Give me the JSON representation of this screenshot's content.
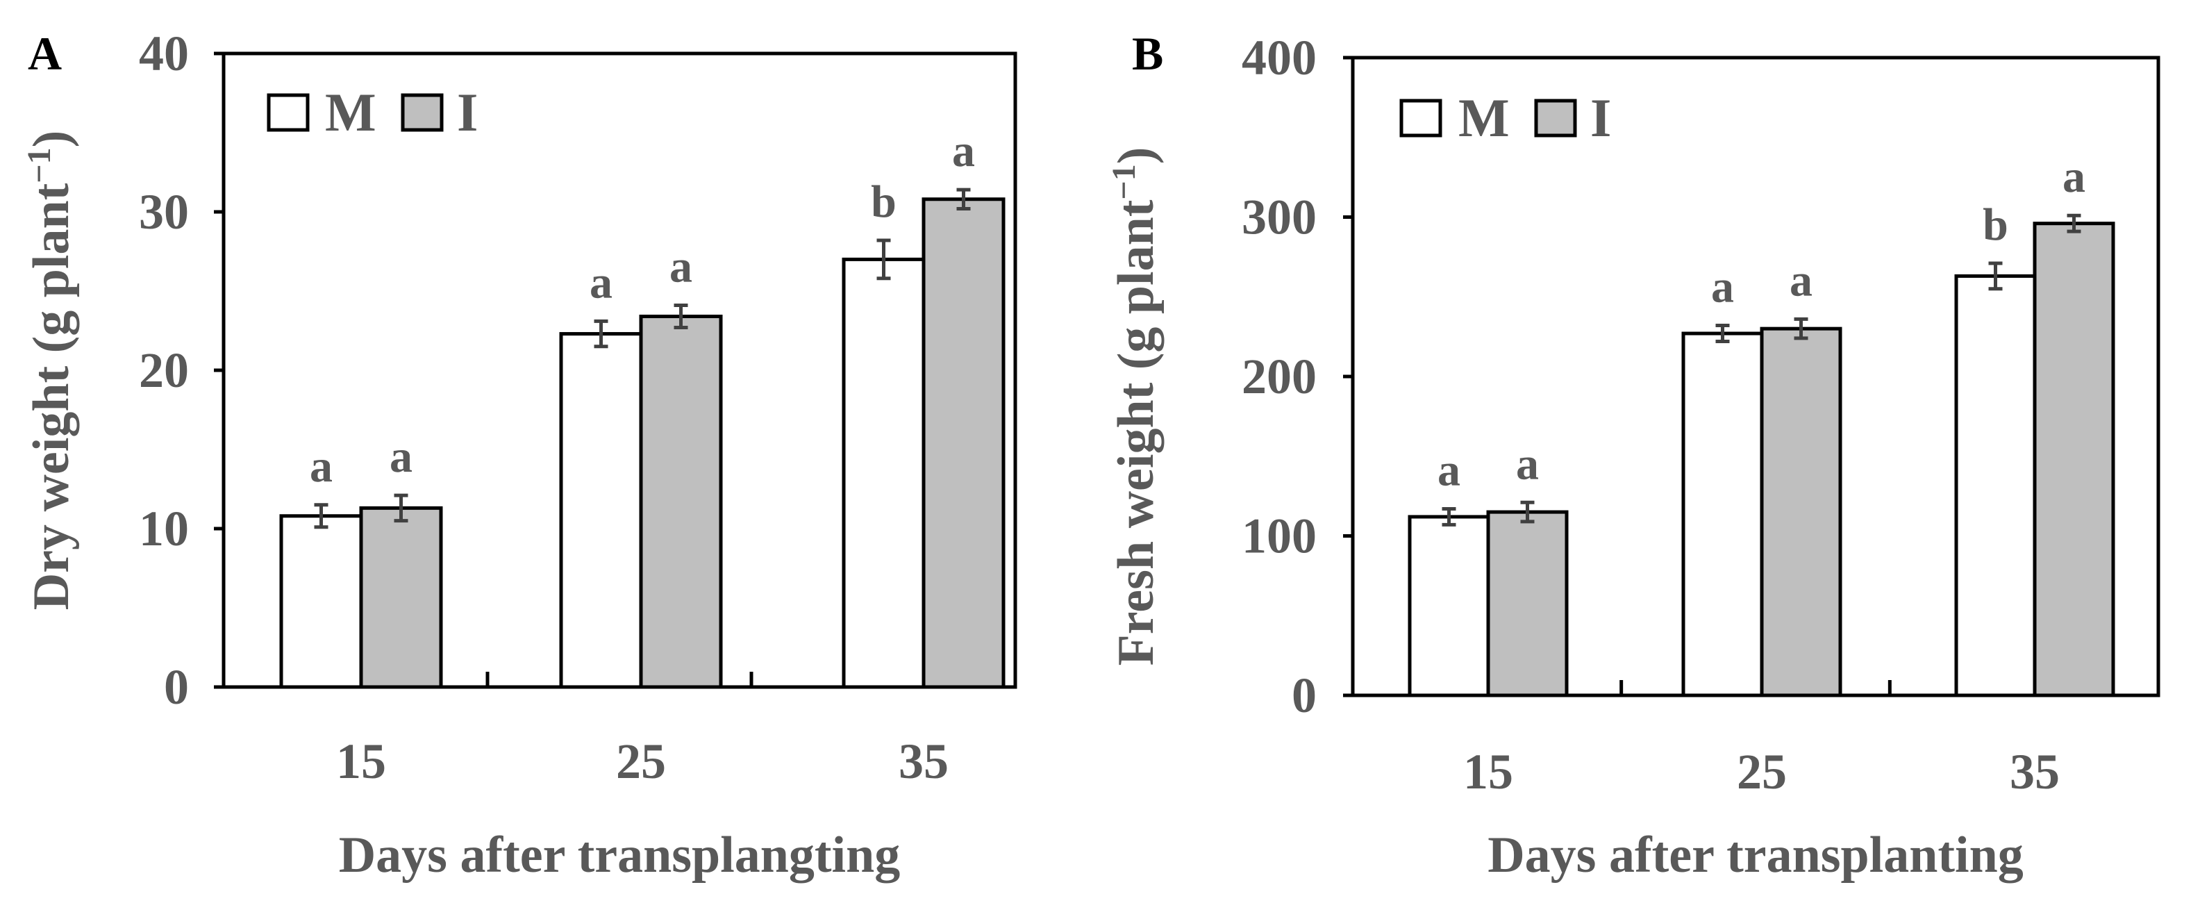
{
  "chart_data": [
    {
      "panel": "A",
      "type": "bar",
      "categories": [
        "15",
        "25",
        "35"
      ],
      "series": [
        {
          "name": "M",
          "color": "#ffffff",
          "values": [
            10.8,
            22.3,
            27.0
          ],
          "errors": [
            0.7,
            0.8,
            1.2
          ],
          "sig": [
            "a",
            "a",
            "b"
          ]
        },
        {
          "name": "I",
          "color": "#bfbfbf",
          "values": [
            11.3,
            23.4,
            30.8
          ],
          "errors": [
            0.8,
            0.7,
            0.6
          ],
          "sig": [
            "a",
            "a",
            "a"
          ]
        }
      ],
      "ylim": [
        0,
        40
      ],
      "yticks": [
        0,
        10,
        20,
        30,
        40
      ],
      "ylabel": "Dry weight (g plant",
      "ylabel_sup": "−1",
      "ylabel_close": ")",
      "xlabel": "Days  after  transplangting",
      "legend": "top-left",
      "grid": false
    },
    {
      "panel": "B",
      "type": "bar",
      "categories": [
        "15",
        "25",
        "35"
      ],
      "series": [
        {
          "name": "M",
          "color": "#ffffff",
          "values": [
            112,
            227,
            263
          ],
          "errors": [
            5,
            5,
            8
          ],
          "sig": [
            "a",
            "a",
            "b"
          ]
        },
        {
          "name": "I",
          "color": "#bfbfbf",
          "values": [
            115,
            230,
            296
          ],
          "errors": [
            6,
            6,
            5
          ],
          "sig": [
            "a",
            "a",
            "a"
          ]
        }
      ],
      "ylim": [
        0,
        400
      ],
      "yticks": [
        0,
        100,
        200,
        300,
        400
      ],
      "ylabel": "Fresh weight (g plant",
      "ylabel_sup": "−1",
      "ylabel_close": ")",
      "xlabel": "Days  after  transplanting",
      "legend": "top-left",
      "grid": false
    }
  ]
}
